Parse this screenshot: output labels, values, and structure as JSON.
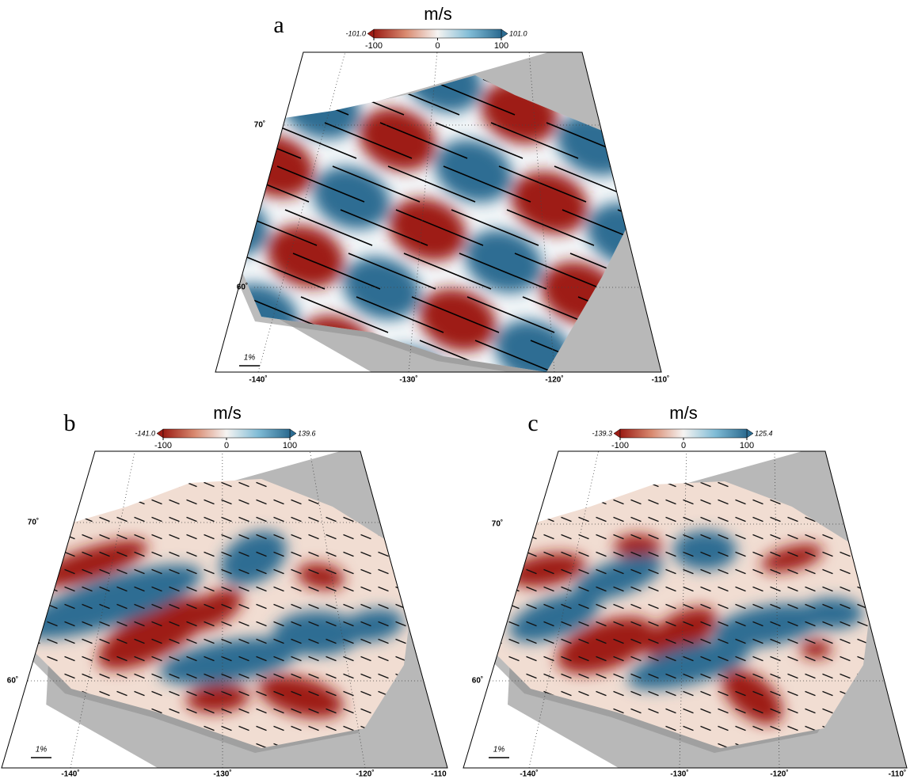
{
  "panels": [
    {
      "label": "a",
      "colorbar": {
        "title": "m/s",
        "min_label": "-101.0",
        "max_label": "101.0",
        "ticks": [
          -100,
          0,
          100
        ]
      },
      "lat_labels": [
        "70˚",
        "60˚"
      ],
      "lon_labels": [
        "-140˚",
        "-130˚",
        "-120˚",
        "-110˚"
      ],
      "scale_label": "1%"
    },
    {
      "label": "b",
      "colorbar": {
        "title": "m/s",
        "min_label": "-141.0",
        "max_label": "139.6",
        "ticks": [
          -100,
          0,
          100
        ]
      },
      "lat_labels": [
        "70˚",
        "60˚"
      ],
      "lon_labels": [
        "-140˚",
        "-130˚",
        "-120˚",
        "-110"
      ],
      "scale_label": "1%"
    },
    {
      "label": "c",
      "colorbar": {
        "title": "m/s",
        "min_label": "-139.3",
        "max_label": "125.4",
        "ticks": [
          -100,
          0,
          100
        ]
      },
      "lat_labels": [
        "70˚",
        "60˚"
      ],
      "lon_labels": [
        "-140˚",
        "-130˚",
        "-120˚",
        "-110˚"
      ],
      "scale_label": "1%"
    }
  ]
}
